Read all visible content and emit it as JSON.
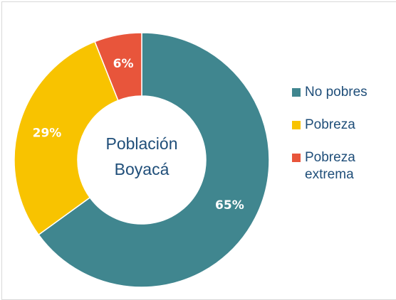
{
  "chart_data": {
    "type": "pie",
    "donut": true,
    "center_label": [
      "Población",
      "Boyacá"
    ],
    "categories": [
      "No pobres",
      "Pobreza",
      "Pobreza extrema"
    ],
    "values": [
      65,
      29,
      6
    ],
    "data_labels": [
      "65%",
      "29%",
      "6%"
    ],
    "colors": [
      "#40868f",
      "#f8c300",
      "#e8553b"
    ],
    "legend": {
      "placement": "right",
      "entries": [
        "No pobres",
        "Pobreza",
        "Pobreza extrema"
      ]
    }
  }
}
